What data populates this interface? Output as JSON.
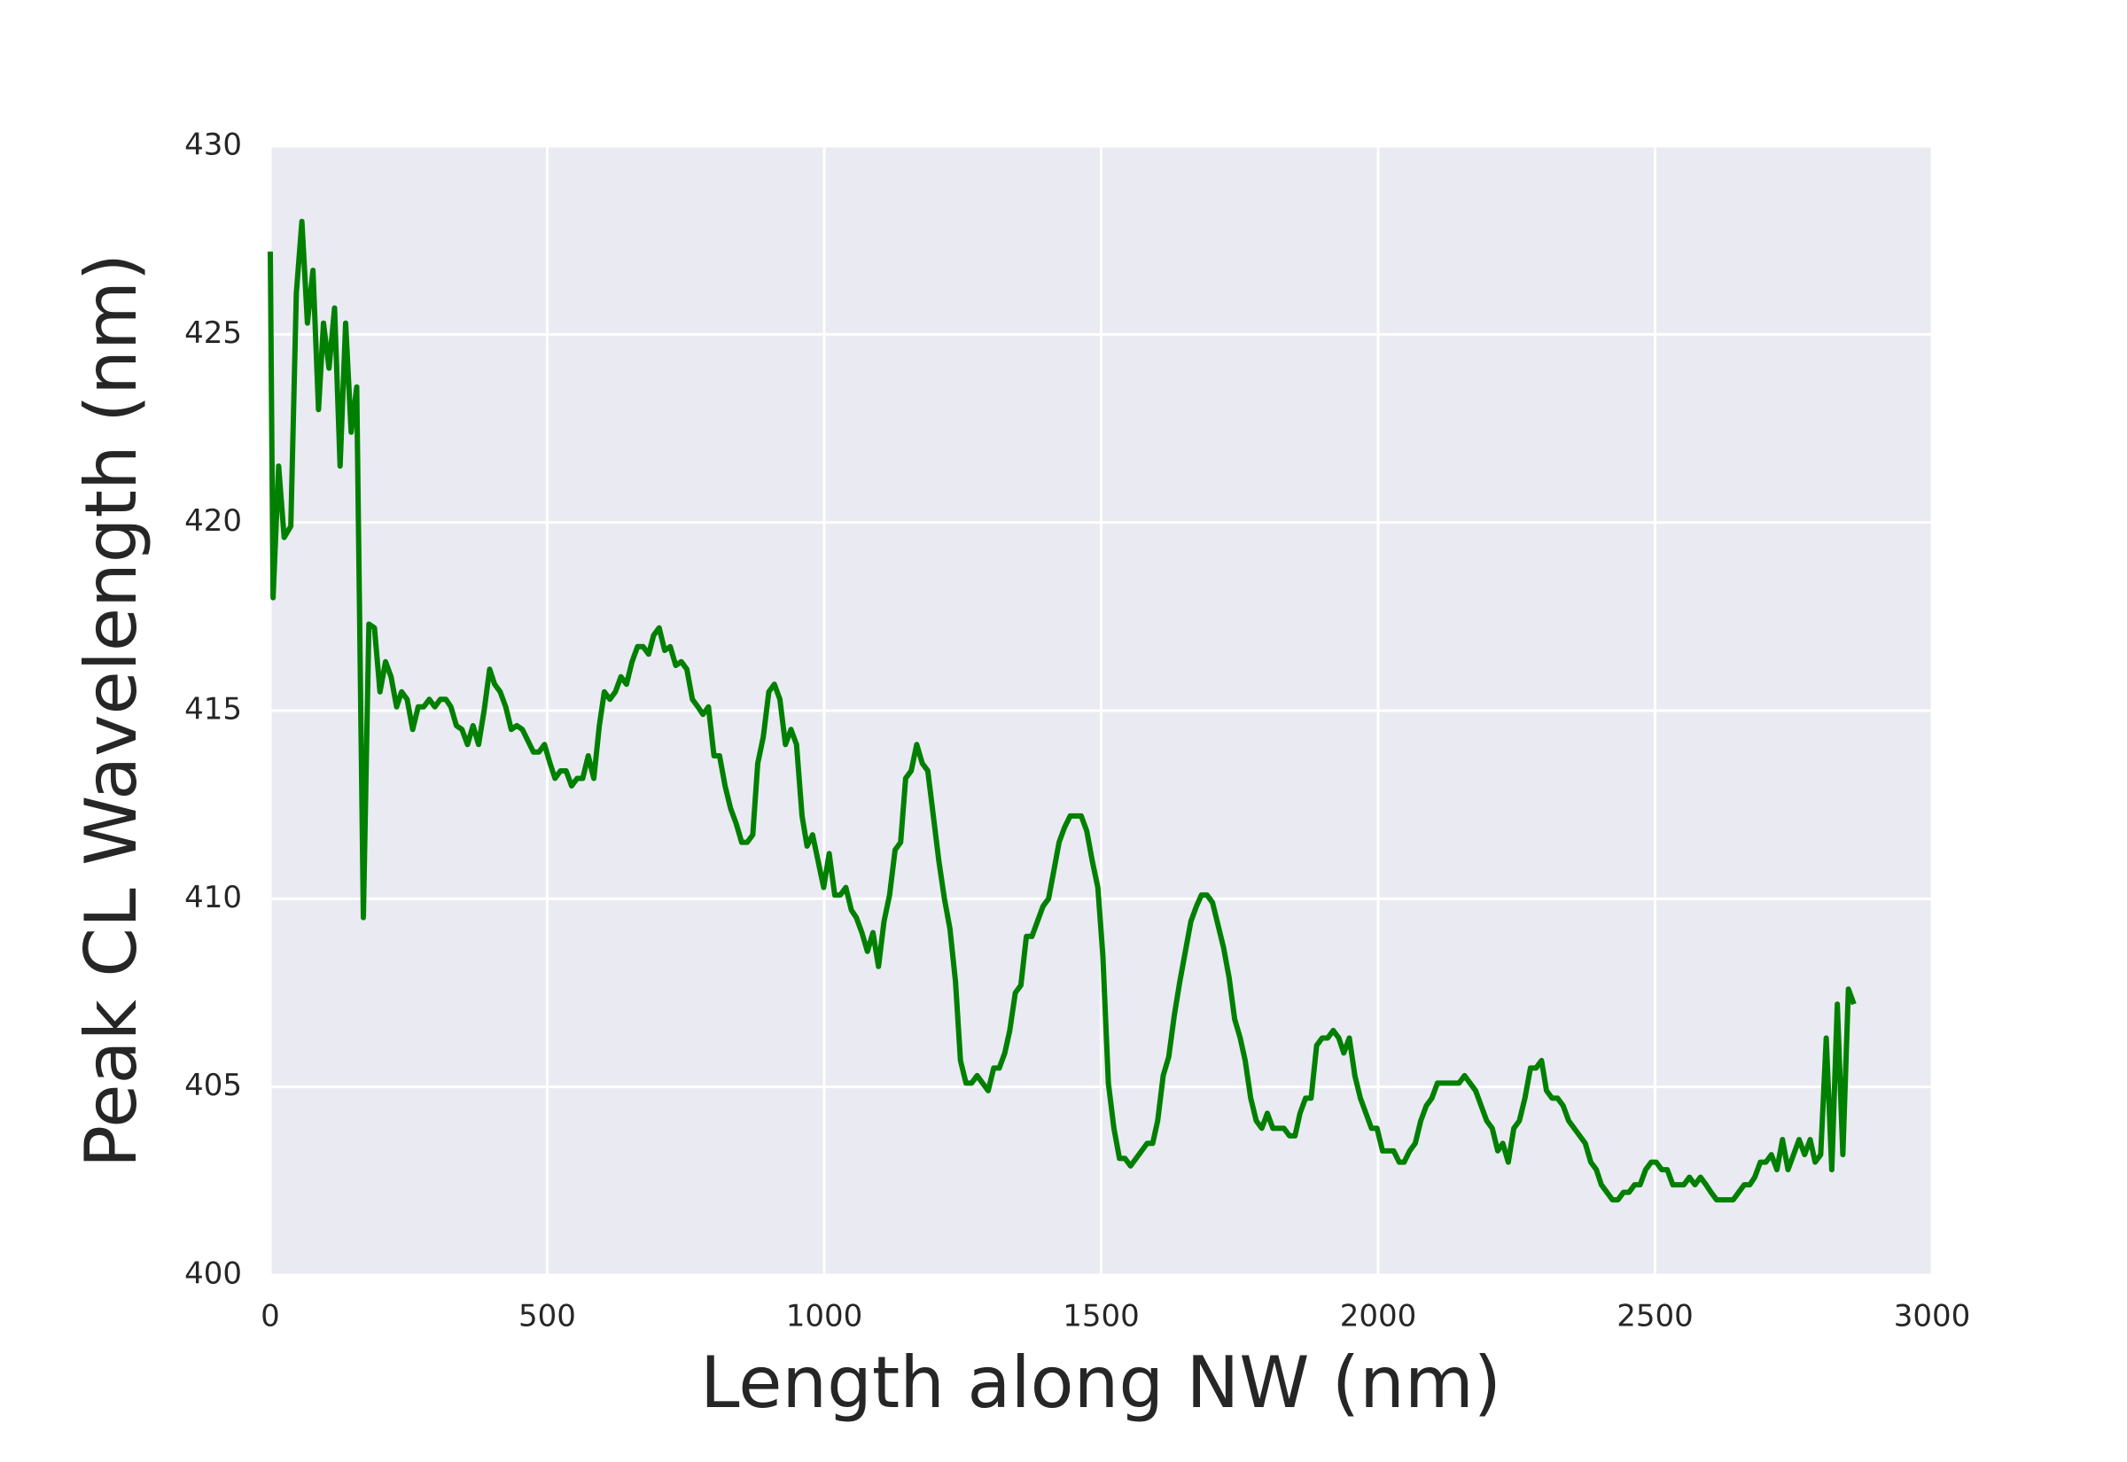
{
  "chart_data": {
    "type": "line",
    "xlabel": "Length along NW (nm)",
    "ylabel": "Peak CL Wavelength (nm)",
    "xlim": [
      0,
      3000
    ],
    "xticks": [
      0,
      500,
      1000,
      1500,
      2000,
      2500,
      3000
    ],
    "ylim": [
      400,
      430
    ],
    "yticks": [
      400,
      405,
      410,
      415,
      420,
      425,
      430
    ],
    "grid": true,
    "background": "#eaeaf2",
    "series": [
      {
        "name": null,
        "color": "#008000",
        "x": [
          0,
          5,
          15,
          25,
          37,
          47,
          57,
          67,
          77,
          87,
          96,
          106,
          116,
          126,
          136,
          146,
          156,
          168,
          178,
          188,
          198,
          208,
          218,
          228,
          237,
          247,
          257,
          267,
          277,
          287,
          297,
          307,
          317,
          326,
          336,
          346,
          356,
          366,
          376,
          386,
          396,
          405,
          415,
          425,
          435,
          445,
          455,
          465,
          475,
          485,
          495,
          505,
          514,
          524,
          534,
          544,
          554,
          564,
          574,
          584,
          594,
          603,
          613,
          623,
          633,
          643,
          653,
          663,
          673,
          683,
          692,
          702,
          712,
          722,
          732,
          742,
          752,
          762,
          772,
          781,
          791,
          801,
          811,
          821,
          831,
          841,
          851,
          861,
          871,
          880,
          890,
          900,
          910,
          920,
          930,
          940,
          950,
          960,
          969,
          979,
          989,
          999,
          1009,
          1019,
          1029,
          1039,
          1049,
          1058,
          1068,
          1078,
          1088,
          1098,
          1108,
          1118,
          1128,
          1138,
          1147,
          1157,
          1167,
          1177,
          1187,
          1197,
          1207,
          1217,
          1227,
          1237,
          1246,
          1256,
          1266,
          1276,
          1286,
          1296,
          1306,
          1316,
          1326,
          1335,
          1345,
          1355,
          1365,
          1375,
          1385,
          1395,
          1405,
          1414,
          1424,
          1434,
          1444,
          1454,
          1464,
          1474,
          1484,
          1494,
          1503,
          1513,
          1523,
          1533,
          1543,
          1553,
          1563,
          1573,
          1583,
          1593,
          1602,
          1612,
          1622,
          1632,
          1642,
          1652,
          1662,
          1672,
          1681,
          1691,
          1701,
          1711,
          1721,
          1731,
          1741,
          1751,
          1760,
          1770,
          1780,
          1790,
          1800,
          1810,
          1820,
          1830,
          1840,
          1850,
          1859,
          1869,
          1879,
          1889,
          1899,
          1909,
          1919,
          1929,
          1938,
          1948,
          1958,
          1968,
          1978,
          1988,
          1998,
          2008,
          2018,
          2028,
          2038,
          2047,
          2057,
          2067,
          2077,
          2087,
          2097,
          2107,
          2117,
          2126,
          2136,
          2146,
          2156,
          2166,
          2176,
          2186,
          2196,
          2206,
          2216,
          2225,
          2235,
          2245,
          2255,
          2265,
          2275,
          2285,
          2295,
          2304,
          2314,
          2324,
          2334,
          2344,
          2354,
          2364,
          2374,
          2384,
          2394,
          2403,
          2413,
          2423,
          2433,
          2443,
          2453,
          2463,
          2473,
          2483,
          2493,
          2502,
          2512,
          2522,
          2532,
          2542,
          2552,
          2562,
          2572,
          2582,
          2592,
          2601,
          2611,
          2621,
          2631,
          2641,
          2651,
          2661,
          2671,
          2680,
          2690,
          2700,
          2710,
          2720,
          2730,
          2740,
          2750,
          2760,
          2770,
          2780,
          2789,
          2799,
          2809,
          2819,
          2829,
          2839,
          2849,
          2859
        ],
        "values": [
          427.2,
          418.0,
          421.5,
          419.6,
          419.9,
          426.1,
          428.0,
          425.3,
          426.7,
          423.0,
          425.3,
          424.1,
          425.7,
          421.5,
          425.3,
          422.4,
          423.6,
          409.5,
          417.3,
          417.2,
          415.5,
          416.3,
          415.9,
          415.1,
          415.5,
          415.3,
          414.5,
          415.1,
          415.1,
          415.3,
          415.1,
          415.3,
          415.3,
          415.1,
          414.6,
          414.5,
          414.1,
          414.6,
          414.1,
          415.0,
          416.1,
          415.7,
          415.5,
          415.1,
          414.5,
          414.6,
          414.5,
          414.2,
          413.9,
          413.9,
          414.1,
          413.6,
          413.2,
          413.4,
          413.4,
          413.0,
          413.2,
          413.2,
          413.8,
          413.2,
          414.6,
          415.5,
          415.3,
          415.5,
          415.9,
          415.7,
          416.3,
          416.7,
          416.7,
          416.5,
          417.0,
          417.2,
          416.6,
          416.7,
          416.2,
          416.3,
          416.1,
          415.3,
          415.1,
          414.9,
          415.1,
          413.8,
          413.8,
          413.0,
          412.4,
          412.0,
          411.5,
          411.5,
          411.7,
          413.6,
          414.3,
          415.5,
          415.7,
          415.3,
          414.1,
          414.5,
          414.1,
          412.2,
          411.4,
          411.7,
          411.0,
          410.3,
          411.2,
          410.1,
          410.1,
          410.3,
          409.7,
          409.5,
          409.1,
          408.6,
          409.1,
          408.2,
          409.4,
          410.1,
          411.3,
          411.5,
          413.2,
          413.4,
          414.1,
          413.6,
          413.4,
          412.2,
          411.0,
          410.0,
          409.2,
          407.8,
          405.7,
          405.1,
          405.1,
          405.3,
          405.1,
          404.9,
          405.5,
          405.5,
          405.9,
          406.5,
          407.5,
          407.7,
          409.0,
          409.0,
          409.4,
          409.8,
          410.0,
          410.7,
          411.5,
          411.9,
          412.2,
          412.2,
          412.2,
          411.8,
          411.0,
          410.3,
          408.5,
          405.1,
          403.9,
          403.1,
          403.1,
          402.9,
          403.1,
          403.3,
          403.5,
          403.5,
          404.1,
          405.3,
          405.8,
          406.9,
          407.8,
          408.6,
          409.4,
          409.8,
          410.1,
          410.1,
          409.9,
          409.3,
          408.7,
          407.9,
          406.8,
          406.3,
          405.7,
          404.7,
          404.1,
          403.9,
          404.3,
          403.9,
          403.9,
          403.9,
          403.7,
          403.7,
          404.3,
          404.7,
          404.7,
          406.1,
          406.3,
          406.3,
          406.5,
          406.3,
          405.9,
          406.3,
          405.3,
          404.7,
          404.3,
          403.9,
          403.9,
          403.3,
          403.3,
          403.3,
          403.0,
          403.0,
          403.3,
          403.5,
          404.1,
          404.5,
          404.7,
          405.1,
          405.1,
          405.1,
          405.1,
          405.1,
          405.3,
          405.1,
          404.9,
          404.5,
          404.1,
          403.9,
          403.3,
          403.5,
          403.0,
          403.9,
          404.1,
          404.7,
          405.5,
          405.5,
          405.7,
          404.9,
          404.7,
          404.7,
          404.5,
          404.1,
          403.9,
          403.7,
          403.5,
          403.0,
          402.8,
          402.4,
          402.2,
          402.0,
          402.0,
          402.2,
          402.2,
          402.4,
          402.4,
          402.8,
          403.0,
          403.0,
          402.8,
          402.8,
          402.4,
          402.4,
          402.4,
          402.6,
          402.4,
          402.6,
          402.4,
          402.2,
          402.0,
          402.0,
          402.0,
          402.0,
          402.2,
          402.4,
          402.4,
          402.6,
          403.0,
          403.0,
          403.2,
          402.8,
          403.6,
          402.8,
          403.2,
          403.6,
          403.2,
          403.6,
          403.0,
          403.2,
          406.3,
          402.8,
          407.2,
          403.2,
          407.6,
          407.2
        ]
      }
    ]
  }
}
